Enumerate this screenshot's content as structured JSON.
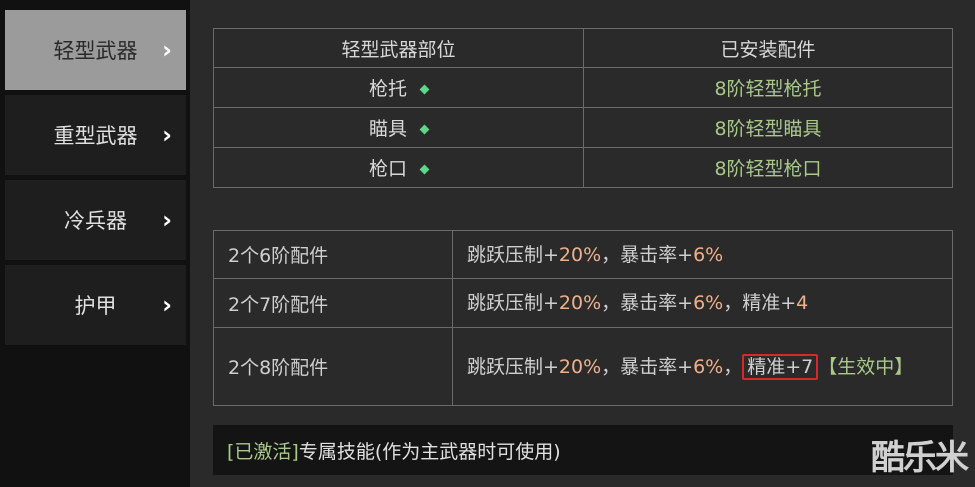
{
  "sidebar": {
    "items": [
      {
        "label": "轻型武器",
        "active": true
      },
      {
        "label": "重型武器"
      },
      {
        "label": "冷兵器"
      },
      {
        "label": "护甲"
      }
    ]
  },
  "parts_table": {
    "headers": [
      "轻型武器部位",
      "已安装配件"
    ],
    "rows": [
      {
        "part": "枪托",
        "installed": "8阶轻型枪托"
      },
      {
        "part": "瞄具",
        "installed": "8阶轻型瞄具"
      },
      {
        "part": "枪口",
        "installed": "8阶轻型枪口"
      }
    ]
  },
  "bonus_table": {
    "rows": [
      {
        "tier": "2个6阶配件",
        "t1": "跳跃压制+",
        "v1": "20%",
        "sep1": "，暴击率+",
        "v2": "6%"
      },
      {
        "tier": "2个7阶配件",
        "t1": "跳跃压制+",
        "v1": "20%",
        "sep1": "，暴击率+",
        "v2": "6%",
        "sep2": "，精准+",
        "v3": "4"
      },
      {
        "tier": "2个8阶配件",
        "t1": "跳跃压制+",
        "v1": "20%",
        "sep1": "，暴击率+",
        "v2": "6%",
        "sep2": "，",
        "hl": "精准+7",
        "status": "【生效中】"
      }
    ]
  },
  "skill": {
    "tag": "[已激活]",
    "title": "专属技能",
    "note": "(作为主武器时可使用)"
  },
  "watermark": "酷乐米",
  "colors": {
    "highlight_border": "#d9282b",
    "green": "#a9c98a",
    "orange": "#f0b08a"
  }
}
